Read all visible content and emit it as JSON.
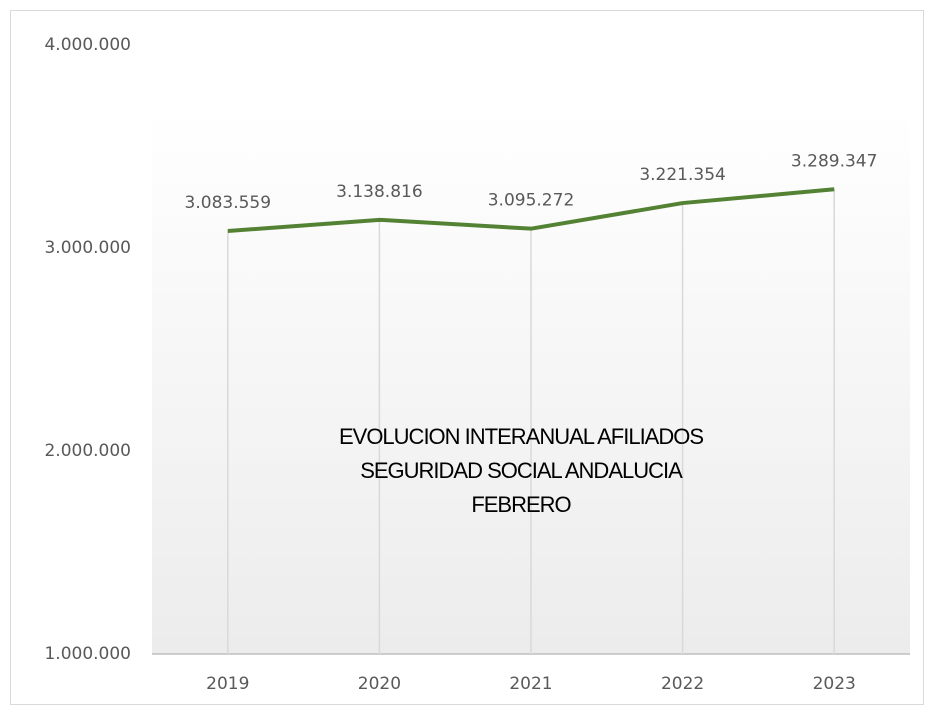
{
  "chart_data": {
    "type": "line",
    "title": [
      "EVOLUCION INTERANUAL AFILIADOS",
      "SEGURIDAD SOCIAL ANDALUCIA",
      "FEBRERO"
    ],
    "categories": [
      "2019",
      "2020",
      "2021",
      "2022",
      "2023"
    ],
    "series": [
      {
        "name": "Afiliados",
        "color": "#548235",
        "values": [
          3083559,
          3138816,
          3095272,
          3221354,
          3289347
        ],
        "value_labels": [
          "3.083.559",
          "3.138.816",
          "3.095.272",
          "3.221.354",
          "3.289.347"
        ]
      }
    ],
    "ylim": [
      1000000,
      4000000
    ],
    "yticks": [
      {
        "value": 1000000,
        "label": "1.000.000"
      },
      {
        "value": 2000000,
        "label": "2.000.000"
      },
      {
        "value": 3000000,
        "label": "3.000.000"
      },
      {
        "value": 4000000,
        "label": "4.000.000"
      }
    ],
    "drop_lines": true
  }
}
